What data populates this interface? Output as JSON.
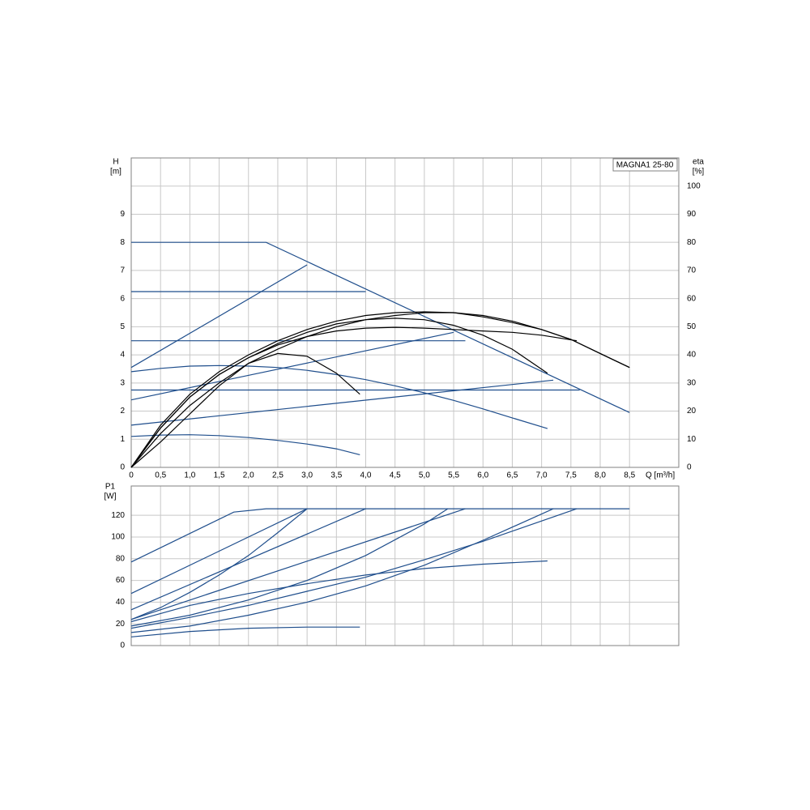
{
  "chart_data": [
    {
      "type": "line",
      "annotation": "MAGNA1 25-80",
      "ylabel": "H",
      "yunit": "[m]",
      "y2label": "eta",
      "y2unit": "[%]",
      "xlabel": "Q [m³/h]",
      "xlim": [
        0,
        9.34
      ],
      "ylim": [
        0,
        11
      ],
      "y2lim": [
        0,
        110
      ],
      "xticks": [
        0,
        {
          "value": 0.5,
          "label": "0,5"
        },
        {
          "value": 1,
          "label": "1,0"
        },
        {
          "value": 1.5,
          "label": "1,5"
        },
        {
          "value": 2,
          "label": "2,0"
        },
        {
          "value": 2.5,
          "label": "2,5"
        },
        {
          "value": 3,
          "label": "3,0"
        },
        {
          "value": 3.5,
          "label": "3,5"
        },
        {
          "value": 4,
          "label": "4,0"
        },
        {
          "value": 4.5,
          "label": "4,5"
        },
        {
          "value": 5,
          "label": "5,0"
        },
        {
          "value": 5.5,
          "label": "5,5"
        },
        {
          "value": 6,
          "label": "6,0"
        },
        {
          "value": 6.5,
          "label": "6,5"
        },
        {
          "value": 7,
          "label": "7,0"
        },
        {
          "value": 7.5,
          "label": "7,5"
        },
        {
          "value": 8,
          "label": "8,0"
        },
        {
          "value": 8.5,
          "label": "8,5"
        }
      ],
      "yticks": [
        0,
        1,
        2,
        3,
        4,
        5,
        6,
        7,
        8,
        9
      ],
      "y2ticks": [
        0,
        10,
        20,
        30,
        40,
        50,
        60,
        70,
        80,
        90,
        100
      ],
      "grid": true,
      "series": [
        {
          "color": "#1f4e8c",
          "x": [
            0,
            2.3,
            8.5
          ],
          "values": [
            8,
            8,
            1.95
          ]
        },
        {
          "color": "#1f4e8c",
          "x": [
            0,
            4.0
          ],
          "values": [
            6.25,
            6.25
          ]
        },
        {
          "color": "#1f4e8c",
          "x": [
            0,
            5.7
          ],
          "values": [
            4.5,
            4.5
          ]
        },
        {
          "color": "#1f4e8c",
          "x": [
            0,
            7.65
          ],
          "values": [
            2.75,
            2.75
          ]
        },
        {
          "color": "#1f4e8c",
          "x": [
            0,
            3.0
          ],
          "values": [
            3.55,
            7.2
          ]
        },
        {
          "color": "#1f4e8c",
          "x": [
            0,
            5.5
          ],
          "values": [
            2.4,
            4.8
          ]
        },
        {
          "color": "#1f4e8c",
          "x": [
            0,
            7.2
          ],
          "values": [
            1.5,
            3.1
          ]
        },
        {
          "color": "#1f4e8c",
          "x": [
            0,
            0.5,
            1,
            1.5,
            2,
            2.5,
            3,
            3.5,
            4,
            4.5,
            5,
            5.5,
            6,
            6.5,
            7.1
          ],
          "values": [
            3.4,
            3.52,
            3.6,
            3.62,
            3.6,
            3.55,
            3.45,
            3.3,
            3.12,
            2.9,
            2.65,
            2.38,
            2.08,
            1.76,
            1.38
          ]
        },
        {
          "color": "#1f4e8c",
          "x": [
            0,
            0.5,
            1,
            1.5,
            2,
            2.5,
            3,
            3.5,
            3.9
          ],
          "values": [
            1.1,
            1.15,
            1.16,
            1.13,
            1.06,
            0.96,
            0.83,
            0.66,
            0.45
          ]
        },
        {
          "color": "#000000",
          "axis": "y2",
          "x": [
            0,
            0.5,
            1,
            1.5,
            2,
            2.5,
            3,
            3.5,
            4,
            4.5,
            5,
            5.5,
            6,
            6.5,
            7,
            7.5,
            8,
            8.5
          ],
          "values": [
            0,
            15,
            26,
            34,
            40,
            45,
            49,
            52,
            54,
            55,
            55.3,
            55,
            53.5,
            51.5,
            49,
            45.5,
            40.5,
            35.5
          ]
        },
        {
          "color": "#000000",
          "axis": "y2",
          "x": [
            0,
            0.5,
            1,
            1.5,
            2,
            2.5,
            3,
            3.5,
            4,
            4.5,
            5,
            5.5,
            6,
            6.5,
            7,
            7.6
          ],
          "values": [
            0,
            14,
            25,
            33,
            39,
            43.5,
            46.5,
            48.5,
            49.5,
            49.8,
            49.5,
            49,
            48.5,
            48,
            47,
            45
          ]
        },
        {
          "color": "#000000",
          "axis": "y2",
          "x": [
            0,
            0.5,
            1,
            1.5,
            2,
            2.5,
            3,
            3.5,
            4,
            4.5,
            5,
            5.5,
            6,
            6.5,
            7.1
          ],
          "values": [
            0,
            14,
            25,
            33,
            39,
            44,
            48,
            51,
            52.5,
            53,
            52.5,
            50.5,
            47,
            42,
            33.5
          ]
        },
        {
          "color": "#000000",
          "axis": "y2",
          "x": [
            0,
            0.5,
            1,
            1.5,
            2,
            2.5,
            3,
            3.5,
            3.9
          ],
          "values": [
            0,
            9,
            19,
            29,
            37,
            40.5,
            39.5,
            33.5,
            26
          ]
        },
        {
          "color": "#000000",
          "axis": "y2",
          "x": [
            0,
            0.5,
            1,
            1.5,
            2,
            2.5,
            3,
            3.5,
            4,
            4.5,
            5,
            5.5,
            6,
            6.5,
            7,
            7.5,
            8,
            8.5
          ],
          "values": [
            0,
            12,
            22,
            30,
            37,
            42,
            46.5,
            50,
            52.5,
            54,
            55,
            55,
            54,
            52,
            49,
            45.5,
            40.5,
            35.5
          ]
        }
      ]
    },
    {
      "type": "line",
      "ylabel": "P1",
      "yunit": "[W]",
      "xlim": [
        0,
        9.34
      ],
      "ylim": [
        0,
        147
      ],
      "yticks": [
        0,
        20,
        40,
        60,
        80,
        100,
        120
      ],
      "grid": true,
      "series": [
        {
          "color": "#1f4e8c",
          "x": [
            0,
            1.75,
            2.3,
            8.5
          ],
          "values": [
            77,
            123,
            126,
            126
          ]
        },
        {
          "color": "#1f4e8c",
          "x": [
            0,
            3.0
          ],
          "values": [
            48,
            126
          ]
        },
        {
          "color": "#1f4e8c",
          "x": [
            0,
            4.0
          ],
          "values": [
            33,
            126
          ]
        },
        {
          "color": "#1f4e8c",
          "x": [
            0,
            0.5,
            1,
            1.5,
            2,
            2.5,
            3.0
          ],
          "values": [
            24,
            35,
            49,
            65,
            83,
            104,
            126
          ]
        },
        {
          "color": "#1f4e8c",
          "x": [
            0,
            5.7
          ],
          "values": [
            24,
            126
          ]
        },
        {
          "color": "#1f4e8c",
          "x": [
            0,
            1,
            2,
            3,
            4,
            5,
            5.4
          ],
          "values": [
            18,
            28,
            42,
            60,
            83,
            112,
            126
          ]
        },
        {
          "color": "#1f4e8c",
          "x": [
            0,
            1,
            2,
            3,
            4,
            5,
            6,
            7.2
          ],
          "values": [
            12,
            18,
            28,
            40,
            55,
            74,
            97,
            126
          ]
        },
        {
          "color": "#1f4e8c",
          "x": [
            0,
            1,
            2,
            3,
            4,
            5,
            6,
            7.6
          ],
          "values": [
            16,
            26,
            37,
            50,
            63,
            79,
            96,
            126
          ]
        },
        {
          "color": "#1f4e8c",
          "x": [
            0,
            1,
            2,
            3,
            4,
            5,
            6,
            7.1
          ],
          "values": [
            22,
            37,
            48,
            57,
            65,
            71,
            75,
            78
          ]
        },
        {
          "color": "#1f4e8c",
          "x": [
            0,
            1,
            2,
            3,
            3.9
          ],
          "values": [
            8,
            13,
            16,
            17,
            17
          ]
        }
      ]
    }
  ]
}
